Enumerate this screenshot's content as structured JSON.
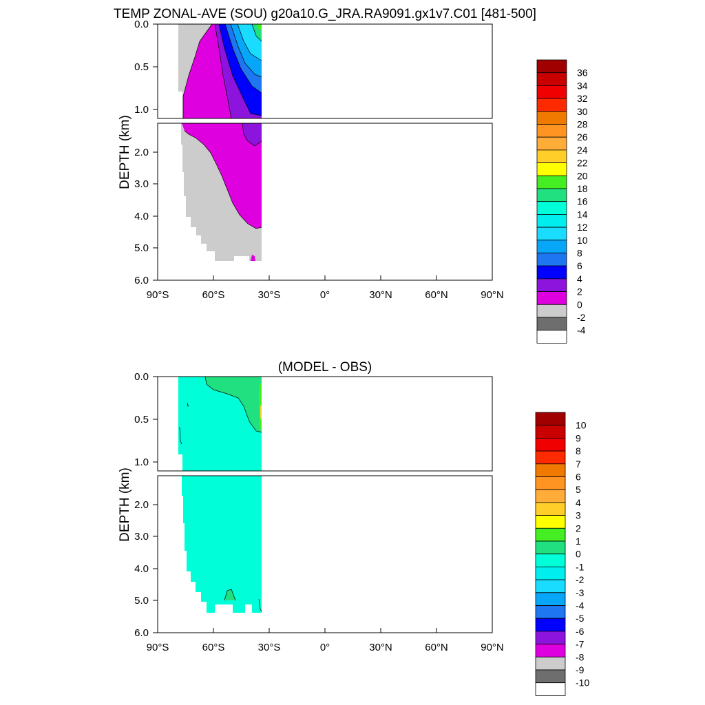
{
  "chart_data": [
    {
      "type": "contour",
      "title": "TEMP ZONAL-AVE (SOU) g20a10.G_JRA.RA9091.gx1v7.C01 [481-500]",
      "ylabel": "DEPTH (km)",
      "xlabel": "",
      "x_ticks": [
        "90°S",
        "60°S",
        "30°S",
        "0°",
        "30°N",
        "60°N",
        "90°N"
      ],
      "y_ticks_upper": [
        "0.0",
        "0.5",
        "1.0"
      ],
      "y_ticks_lower": [
        "2.0",
        "3.0",
        "4.0",
        "5.0",
        "6.0"
      ],
      "xlim": [
        -90,
        90
      ],
      "ylim_km": [
        6.0,
        0.0
      ],
      "upper_panel_range_km": [
        0.0,
        1.1
      ],
      "lower_panel_range_km": [
        1.1,
        6.0
      ],
      "data_extent_lat": [
        -78,
        -35
      ],
      "colorbar": {
        "labels": [
          "36",
          "34",
          "32",
          "30",
          "28",
          "26",
          "24",
          "22",
          "20",
          "18",
          "16",
          "14",
          "12",
          "10",
          "8",
          "6",
          "4",
          "2",
          "0",
          "-2",
          "-4"
        ],
        "colors": [
          "#a00000",
          "#c80000",
          "#f00000",
          "#ff2a00",
          "#f07a00",
          "#ff9422",
          "#ffac38",
          "#ffce28",
          "#ffff00",
          "#44ee22",
          "#20e080",
          "#00ffd8",
          "#00eeee",
          "#1adcff",
          "#08a6f8",
          "#1e76f0",
          "#0000ff",
          "#8c14dc",
          "#de00de",
          "#cccccc",
          "#6e6e6e",
          "#ffffff"
        ]
      },
      "regions": [
        {
          "value_class": "-2 to 0",
          "color": "#cccccc",
          "description_lat_range": [
            -78,
            -35
          ]
        },
        {
          "value_class": "0 to 2",
          "color": "#de00de"
        },
        {
          "value_class": "2 to 4",
          "color": "#8c14dc"
        },
        {
          "value_class": "4 to 6",
          "color": "#0000ff"
        },
        {
          "value_class": "6 to 8",
          "color": "#1e76f0"
        },
        {
          "value_class": "8 to 10",
          "color": "#08a6f8"
        },
        {
          "value_class": "10 to 14",
          "color": "#1adcff"
        },
        {
          "value_class": "14 to 18",
          "color": "#20e080"
        }
      ]
    },
    {
      "type": "contour",
      "title": "(MODEL - OBS)",
      "ylabel": "DEPTH (km)",
      "xlabel": "",
      "x_ticks": [
        "90°S",
        "60°S",
        "30°S",
        "0°",
        "30°N",
        "60°N",
        "90°N"
      ],
      "y_ticks_upper": [
        "0.0",
        "0.5",
        "1.0"
      ],
      "y_ticks_lower": [
        "2.0",
        "3.0",
        "4.0",
        "5.0",
        "6.0"
      ],
      "xlim": [
        -90,
        90
      ],
      "ylim_km": [
        6.0,
        0.0
      ],
      "data_extent_lat": [
        -78,
        -35
      ],
      "colorbar": {
        "labels": [
          "10",
          "9",
          "8",
          "7",
          "6",
          "5",
          "4",
          "3",
          "2",
          "1",
          "0",
          "-1",
          "-2",
          "-3",
          "-4",
          "-5",
          "-6",
          "-7",
          "-8",
          "-9",
          "-10"
        ],
        "colors": [
          "#a00000",
          "#c80000",
          "#f00000",
          "#ff2a00",
          "#f07a00",
          "#ff9422",
          "#ffac38",
          "#ffce28",
          "#ffff00",
          "#44ee22",
          "#20e080",
          "#00ffd8",
          "#00eeee",
          "#1adcff",
          "#08a6f8",
          "#1e76f0",
          "#0000ff",
          "#8c14dc",
          "#de00de",
          "#cccccc",
          "#6e6e6e",
          "#ffffff"
        ]
      },
      "regions": [
        {
          "value_class": "-1 to 0",
          "color": "#00ffd8"
        },
        {
          "value_class": "0 to 1",
          "color": "#20e080"
        },
        {
          "value_class": "1 to 2",
          "color": "#44ee22"
        }
      ]
    }
  ]
}
